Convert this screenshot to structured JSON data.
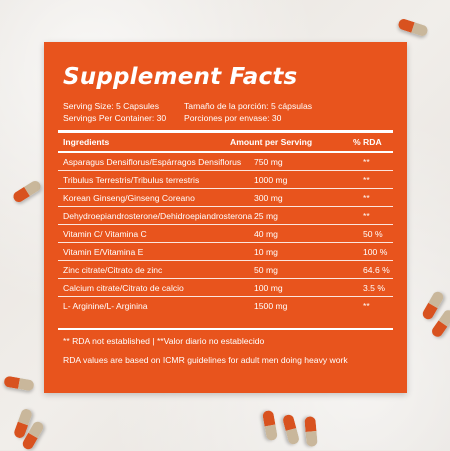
{
  "colors": {
    "panel": "#e8541d",
    "text": "#ffffff",
    "capsule_red": "#d8521f",
    "capsule_tan": "#c9b79b",
    "background": "#eeeae6"
  },
  "title": "Supplement Facts",
  "serving": {
    "size_en": "Serving Size: 5 Capsules",
    "size_es": "Tamaño de la porción: 5 cápsulas",
    "per_container_en": "Servings Per Container: 30",
    "per_container_es": "Porciones por envase: 30"
  },
  "table": {
    "headers": {
      "ingredients": "Ingredients",
      "amount": "Amount per Serving",
      "rda": "% RDA"
    },
    "rows": [
      {
        "ingredient": "Asparagus Densiflorus/Espárragos Densiflorus",
        "amount": "750 mg",
        "rda": "**"
      },
      {
        "ingredient": "Tribulus Terrestris/Tribulus terrestris",
        "amount": "1000 mg",
        "rda": "**"
      },
      {
        "ingredient": "Korean Ginseng/Ginseng Coreano",
        "amount": "300 mg",
        "rda": "**"
      },
      {
        "ingredient": "Dehydroepiandrosterone/Dehidroepiandrosterona",
        "amount": "25 mg",
        "rda": "**"
      },
      {
        "ingredient": "Vitamin C/ Vitamina C",
        "amount": "40 mg",
        "rda": "50 %"
      },
      {
        "ingredient": "Vitamin E/Vitamina E",
        "amount": "10 mg",
        "rda": "100 %"
      },
      {
        "ingredient": "Zinc citrate/Citrato de zinc",
        "amount": "50 mg",
        "rda": "64.6 %"
      },
      {
        "ingredient": "Calcium citrate/Citrato de calcio",
        "amount": "100 mg",
        "rda": "3.5 %"
      },
      {
        "ingredient": "L- Arginine/L- Arginina",
        "amount": "1500 mg",
        "rda": "**"
      }
    ]
  },
  "footnotes": {
    "not_established": "** RDA not established | **Valor diario no establecido",
    "basis": "RDA values are based on ICMR guidelines for adult men doing heavy work"
  }
}
